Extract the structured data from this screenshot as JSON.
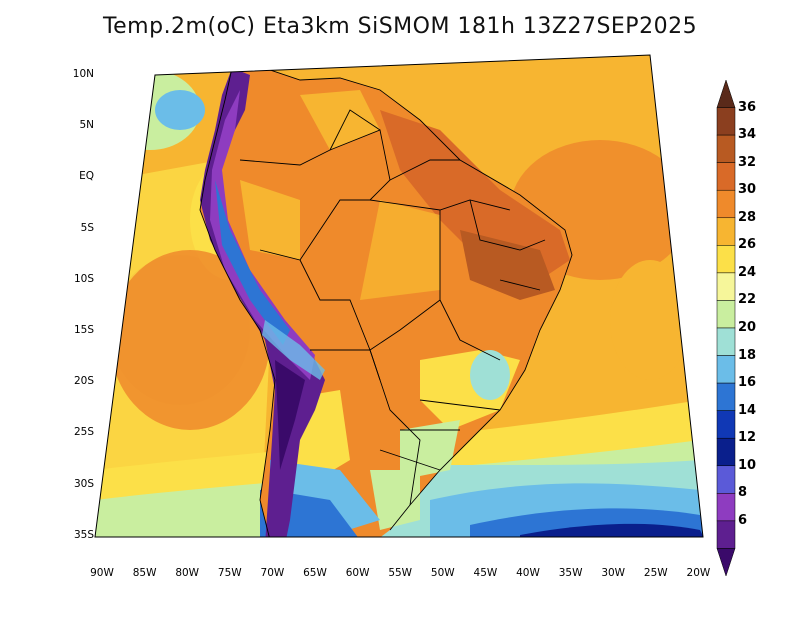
{
  "title": "Temp.2m(oC) Eta3km SiSMOM 181h 13Z27SEP2025",
  "variable": "Temp.2m(oC)",
  "model": "Eta3km SiSMOM",
  "forecast_hour": "181h",
  "valid_time": "13Z27SEP2025",
  "lat_labels": [
    "10N",
    "5N",
    "EQ",
    "5S",
    "10S",
    "15S",
    "20S",
    "25S",
    "30S",
    "35S"
  ],
  "lon_labels": [
    "90W",
    "85W",
    "80W",
    "75W",
    "70W",
    "65W",
    "60W",
    "55W",
    "50W",
    "45W",
    "40W",
    "35W",
    "30W",
    "25W",
    "20W"
  ],
  "colorbar": {
    "labels": [
      "36",
      "34",
      "32",
      "30",
      "28",
      "26",
      "24",
      "22",
      "20",
      "18",
      "16",
      "14",
      "12",
      "10",
      "8",
      "6"
    ],
    "colors": [
      "#5a2a1a",
      "#8b3f1f",
      "#b85a22",
      "#d96a28",
      "#ef8a2b",
      "#f7b531",
      "#fce048",
      "#f6f69a",
      "#c9ee9f",
      "#9fe0d6",
      "#6bbde8",
      "#2d75d4",
      "#1038b5",
      "#0a1f8c",
      "#5b5ad8",
      "#8e3cc0",
      "#5e1f90",
      "#3a0a6a"
    ]
  },
  "legend_colors": {
    "ocean_warm": "#f7b531",
    "ocean_cool": "#fce048",
    "land_hot": "#ef8a2b",
    "land_very_hot": "#d96a28",
    "andes_cold": "#5e1f90",
    "south_cold": "#1038b5"
  }
}
